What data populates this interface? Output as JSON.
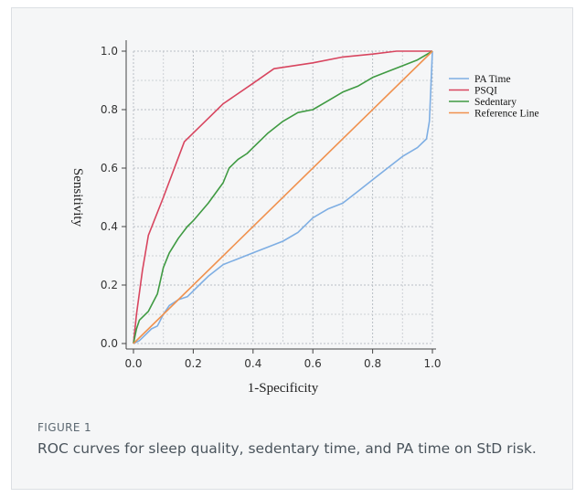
{
  "figure": {
    "label": "FIGURE 1",
    "caption": "ROC curves for sleep quality, sedentary time, and PA time on StD risk."
  },
  "chart_data": {
    "type": "line",
    "xlabel": "1-Specificity",
    "ylabel": "Sensitivity",
    "xlim": [
      0,
      1
    ],
    "ylim": [
      0,
      1
    ],
    "xticks": [
      "0.0",
      "0.2",
      "0.4",
      "0.6",
      "0.8",
      "1.0"
    ],
    "yticks": [
      "0.0",
      "0.2",
      "0.4",
      "0.6",
      "0.8",
      "1.0"
    ],
    "grid": true,
    "legend_position": "right",
    "series": [
      {
        "name": "PA Time",
        "color": "#7eaee3",
        "x": [
          0,
          0.02,
          0.04,
          0.06,
          0.08,
          0.1,
          0.12,
          0.15,
          0.18,
          0.2,
          0.22,
          0.25,
          0.3,
          0.35,
          0.4,
          0.45,
          0.5,
          0.55,
          0.58,
          0.6,
          0.65,
          0.7,
          0.75,
          0.8,
          0.85,
          0.9,
          0.95,
          0.98,
          0.99,
          1.0
        ],
        "y": [
          0,
          0.01,
          0.03,
          0.05,
          0.06,
          0.1,
          0.13,
          0.15,
          0.16,
          0.18,
          0.2,
          0.23,
          0.27,
          0.29,
          0.31,
          0.33,
          0.35,
          0.38,
          0.41,
          0.43,
          0.46,
          0.48,
          0.52,
          0.56,
          0.6,
          0.64,
          0.67,
          0.7,
          0.76,
          1.0
        ]
      },
      {
        "name": "PSQI",
        "color": "#d8455f",
        "x": [
          0,
          0.01,
          0.03,
          0.05,
          0.1,
          0.17,
          0.25,
          0.3,
          0.4,
          0.47,
          0.6,
          0.7,
          0.8,
          0.88,
          0.95,
          1.0
        ],
        "y": [
          0,
          0.1,
          0.25,
          0.37,
          0.5,
          0.69,
          0.77,
          0.82,
          0.89,
          0.94,
          0.96,
          0.98,
          0.99,
          1.0,
          1.0,
          1.0
        ]
      },
      {
        "name": "Sedentary",
        "color": "#3f9a42",
        "x": [
          0,
          0.01,
          0.02,
          0.05,
          0.08,
          0.1,
          0.12,
          0.15,
          0.18,
          0.2,
          0.25,
          0.3,
          0.32,
          0.35,
          0.38,
          0.4,
          0.45,
          0.5,
          0.55,
          0.6,
          0.65,
          0.7,
          0.75,
          0.8,
          0.85,
          0.9,
          0.95,
          1.0
        ],
        "y": [
          0,
          0.05,
          0.08,
          0.11,
          0.17,
          0.26,
          0.31,
          0.36,
          0.4,
          0.42,
          0.48,
          0.55,
          0.6,
          0.63,
          0.65,
          0.67,
          0.72,
          0.76,
          0.79,
          0.8,
          0.83,
          0.86,
          0.88,
          0.91,
          0.93,
          0.95,
          0.97,
          1.0
        ]
      },
      {
        "name": "Reference Line",
        "color": "#f0914e",
        "x": [
          0,
          1
        ],
        "y": [
          0,
          1
        ]
      }
    ]
  }
}
